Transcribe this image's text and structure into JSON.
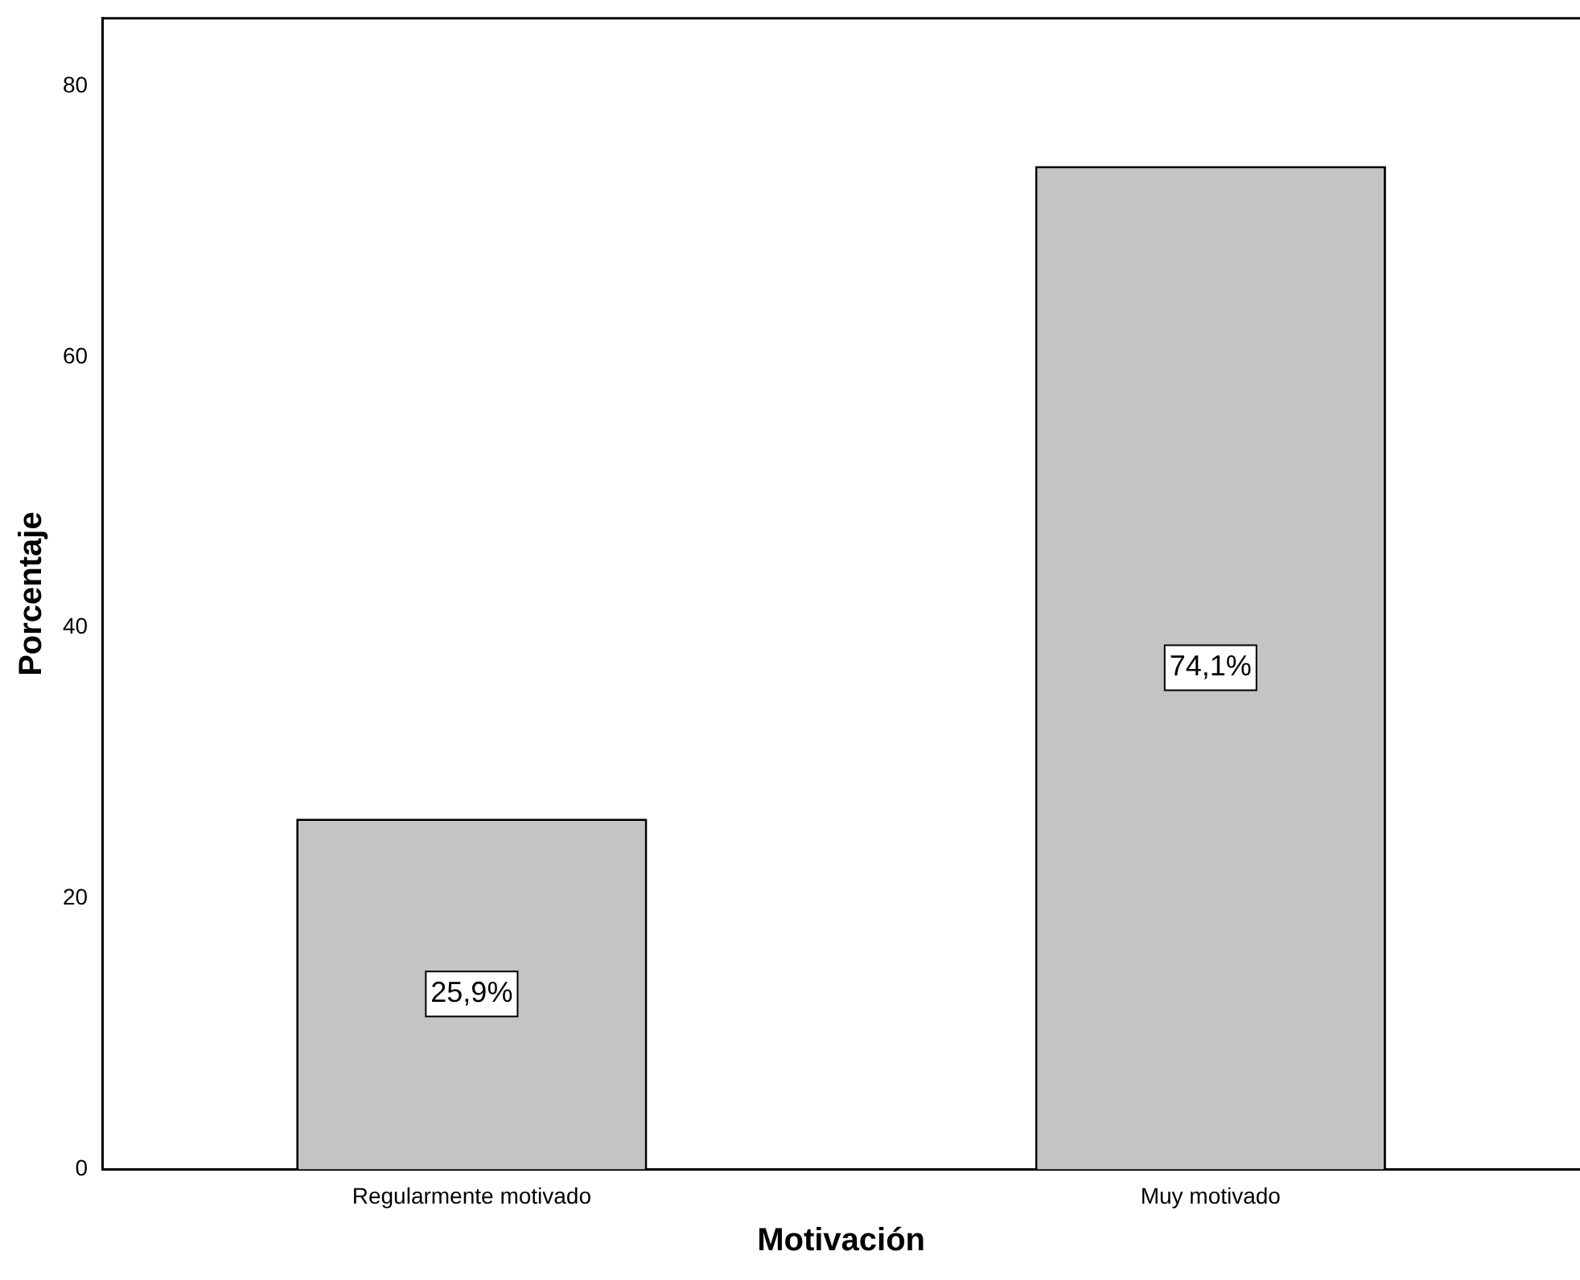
{
  "chart_data": {
    "type": "bar",
    "xlabel": "Motivación",
    "ylabel": "Porcentaje",
    "categories": [
      "Regularmente motivado",
      "Muy motivado"
    ],
    "values": [
      25.9,
      74.1
    ],
    "color": "#c4c4c4",
    "value_labels": [
      "25,9%",
      "74,1%"
    ],
    "ylim": [
      0,
      85
    ],
    "yticks": [
      0,
      20,
      40,
      60,
      80
    ],
    "grid": false,
    "legend": false
  }
}
